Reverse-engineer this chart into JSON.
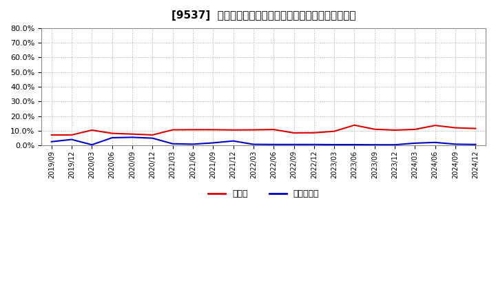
{
  "title": "[9537]  現預金、有利子負債の総資産に対する比率の推移",
  "ylim": [
    0.0,
    0.8
  ],
  "yticks": [
    0.0,
    0.1,
    0.2,
    0.3,
    0.4,
    0.5,
    0.6,
    0.7,
    0.8
  ],
  "legend_labels": [
    "現預金",
    "有利子負債"
  ],
  "line_colors": [
    "#dd0000",
    "#0000cc"
  ],
  "background_color": "#ffffff",
  "plot_bg_color": "#ffffff",
  "grid_color": "#aaaaaa",
  "dates": [
    "2019/09",
    "2019/12",
    "2020/03",
    "2020/06",
    "2020/09",
    "2020/12",
    "2021/03",
    "2021/06",
    "2021/09",
    "2021/12",
    "2022/03",
    "2022/06",
    "2022/09",
    "2022/12",
    "2023/03",
    "2023/06",
    "2023/09",
    "2023/12",
    "2024/03",
    "2024/06",
    "2024/09",
    "2024/12"
  ],
  "cash": [
    0.071,
    0.071,
    0.104,
    0.082,
    0.077,
    0.071,
    0.106,
    0.107,
    0.107,
    0.105,
    0.106,
    0.108,
    0.085,
    0.086,
    0.096,
    0.138,
    0.11,
    0.104,
    0.109,
    0.136,
    0.12,
    0.115
  ],
  "debt": [
    0.025,
    0.04,
    0.004,
    0.052,
    0.055,
    0.049,
    0.011,
    0.008,
    0.017,
    0.03,
    0.007,
    0.006,
    0.006,
    0.006,
    0.005,
    0.005,
    0.004,
    0.004,
    0.015,
    0.02,
    0.008,
    0.006
  ]
}
